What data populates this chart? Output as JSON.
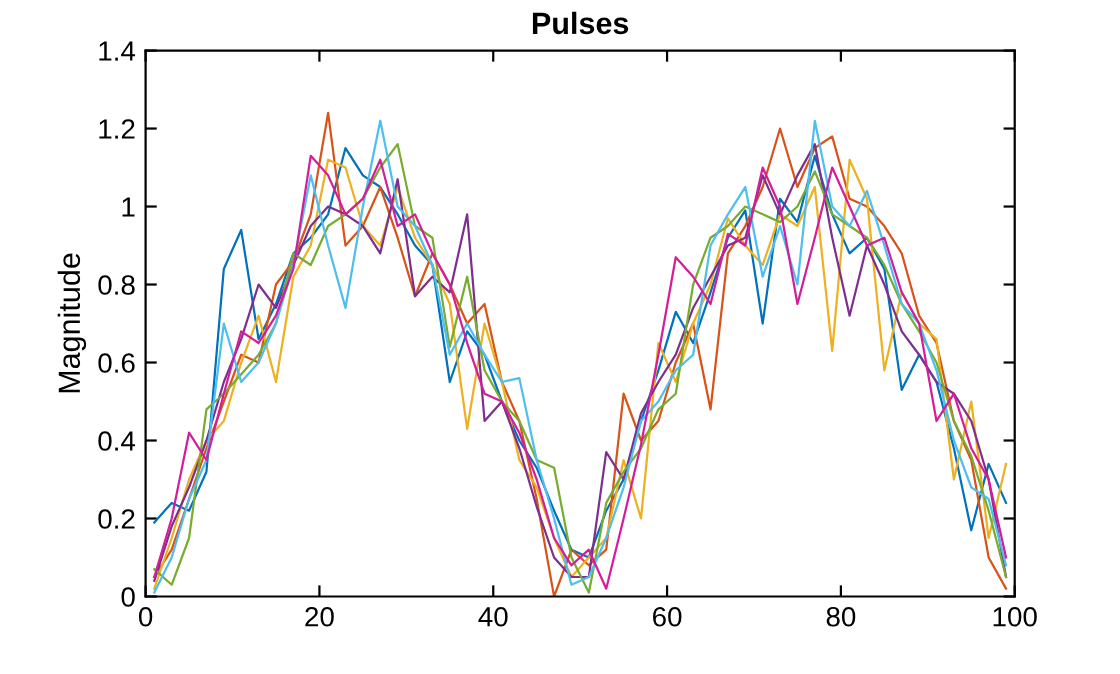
{
  "chart_data": {
    "type": "line",
    "title": "Pulses",
    "ylabel": "Magnitude",
    "x": [
      1,
      3,
      5,
      7,
      9,
      11,
      13,
      15,
      17,
      19,
      21,
      23,
      25,
      27,
      29,
      31,
      33,
      35,
      37,
      39,
      41,
      43,
      45,
      47,
      49,
      51,
      53,
      55,
      57,
      59,
      61,
      63,
      65,
      67,
      69,
      71,
      73,
      75,
      77,
      79,
      81,
      83,
      85,
      87,
      89,
      91,
      93,
      95,
      97,
      99
    ],
    "xlim": [
      0,
      100
    ],
    "xticks": [
      0,
      20,
      40,
      60,
      80,
      100
    ],
    "ylim": [
      0,
      1.4
    ],
    "yticks": [
      0,
      0.2,
      0.4,
      0.6,
      0.8,
      1,
      1.2,
      1.4
    ],
    "grid": false,
    "line_style": "solid",
    "marker": "none",
    "series": [
      {
        "color": "#0072bd",
        "values": [
          0.19,
          0.24,
          0.22,
          0.32,
          0.84,
          0.94,
          0.66,
          0.75,
          0.88,
          0.92,
          0.98,
          1.15,
          1.08,
          1.05,
          0.98,
          0.9,
          0.85,
          0.55,
          0.68,
          0.62,
          0.5,
          0.4,
          0.33,
          0.22,
          0.12,
          0.1,
          0.22,
          0.3,
          0.45,
          0.58,
          0.73,
          0.65,
          0.78,
          0.92,
          0.99,
          0.7,
          1.02,
          0.96,
          1.13,
          0.98,
          0.88,
          0.92,
          0.84,
          0.53,
          0.62,
          0.55,
          0.38,
          0.17,
          0.34,
          0.24
        ]
      },
      {
        "color": "#d95319",
        "values": [
          0.05,
          0.12,
          0.25,
          0.38,
          0.5,
          0.62,
          0.6,
          0.8,
          0.86,
          0.98,
          1.24,
          0.9,
          0.95,
          1.05,
          0.92,
          0.77,
          0.88,
          0.8,
          0.7,
          0.75,
          0.55,
          0.45,
          0.25,
          0.0,
          0.12,
          0.08,
          0.12,
          0.52,
          0.4,
          0.45,
          0.6,
          0.7,
          0.48,
          0.88,
          0.95,
          1.05,
          1.2,
          1.05,
          1.15,
          1.18,
          1.02,
          1.0,
          0.95,
          0.88,
          0.72,
          0.65,
          0.45,
          0.35,
          0.1,
          0.02
        ]
      },
      {
        "color": "#edb120",
        "values": [
          0.02,
          0.15,
          0.3,
          0.4,
          0.45,
          0.6,
          0.72,
          0.55,
          0.82,
          0.9,
          1.12,
          1.1,
          0.95,
          0.9,
          1.05,
          0.92,
          0.85,
          0.75,
          0.43,
          0.7,
          0.55,
          0.35,
          0.28,
          0.15,
          0.05,
          0.1,
          0.15,
          0.35,
          0.2,
          0.65,
          0.55,
          0.7,
          0.8,
          0.97,
          0.9,
          0.85,
          0.98,
          0.95,
          1.05,
          0.63,
          1.12,
          1.02,
          0.58,
          0.78,
          0.7,
          0.66,
          0.3,
          0.5,
          0.15,
          0.34
        ]
      },
      {
        "color": "#7e2f8e",
        "values": [
          0.04,
          0.18,
          0.28,
          0.4,
          0.55,
          0.66,
          0.8,
          0.74,
          0.85,
          0.95,
          1.0,
          0.98,
          0.95,
          0.88,
          1.07,
          0.77,
          0.82,
          0.78,
          0.98,
          0.45,
          0.5,
          0.38,
          0.23,
          0.1,
          0.05,
          0.05,
          0.37,
          0.3,
          0.47,
          0.55,
          0.62,
          0.74,
          0.82,
          0.9,
          0.92,
          1.08,
          0.98,
          1.08,
          1.16,
          0.92,
          0.72,
          0.9,
          0.8,
          0.68,
          0.62,
          0.55,
          0.52,
          0.45,
          0.3,
          0.05
        ]
      },
      {
        "color": "#77ac30",
        "values": [
          0.07,
          0.03,
          0.15,
          0.48,
          0.52,
          0.57,
          0.62,
          0.7,
          0.88,
          0.85,
          0.95,
          0.98,
          1.02,
          1.1,
          1.16,
          0.95,
          0.92,
          0.64,
          0.82,
          0.58,
          0.5,
          0.45,
          0.35,
          0.33,
          0.1,
          0.01,
          0.24,
          0.32,
          0.38,
          0.48,
          0.52,
          0.8,
          0.92,
          0.95,
          1.0,
          0.98,
          0.96,
          1.0,
          1.09,
          0.98,
          0.95,
          0.92,
          0.85,
          0.75,
          0.68,
          0.6,
          0.45,
          0.36,
          0.22,
          0.05
        ]
      },
      {
        "color": "#4dbeee",
        "values": [
          0.01,
          0.1,
          0.25,
          0.35,
          0.7,
          0.55,
          0.6,
          0.7,
          0.85,
          1.08,
          0.9,
          0.74,
          1.0,
          1.22,
          1.0,
          0.95,
          0.85,
          0.62,
          0.7,
          0.62,
          0.55,
          0.56,
          0.35,
          0.2,
          0.03,
          0.05,
          0.15,
          0.28,
          0.45,
          0.5,
          0.58,
          0.62,
          0.9,
          0.98,
          1.05,
          0.82,
          0.95,
          0.8,
          1.22,
          1.0,
          0.95,
          1.04,
          0.9,
          0.75,
          0.7,
          0.58,
          0.4,
          0.28,
          0.25,
          0.08
        ]
      },
      {
        "color": "#d41d9a",
        "values": [
          0.05,
          0.2,
          0.42,
          0.35,
          0.52,
          0.68,
          0.65,
          0.72,
          0.84,
          1.13,
          1.08,
          0.98,
          1.02,
          1.12,
          0.95,
          0.98,
          0.88,
          0.8,
          0.65,
          0.52,
          0.5,
          0.42,
          0.3,
          0.15,
          0.08,
          0.12,
          0.02,
          0.2,
          0.39,
          0.62,
          0.87,
          0.82,
          0.75,
          0.93,
          0.9,
          1.1,
          1.0,
          0.75,
          0.92,
          1.1,
          1.0,
          0.9,
          0.92,
          0.78,
          0.7,
          0.45,
          0.52,
          0.38,
          0.3,
          0.1
        ]
      }
    ]
  }
}
